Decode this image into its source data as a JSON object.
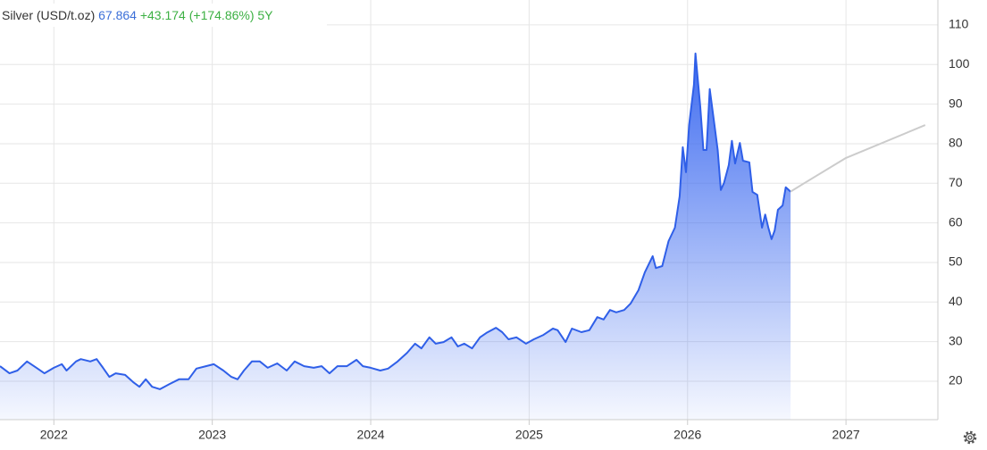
{
  "chart_data": {
    "type": "area",
    "title": "Silver (USD/t.oz)",
    "price": "67.864",
    "change": "+43.174 (+174.86%)",
    "period": "5Y",
    "xlim": [
      2021.66,
      2027.58
    ],
    "xticks": [
      2022,
      2023,
      2024,
      2025,
      2026,
      2027
    ],
    "ylim": [
      10.3,
      116.3
    ],
    "yticks": [
      20,
      30,
      40,
      50,
      60,
      70,
      80,
      90,
      100,
      110
    ],
    "grid": true,
    "series": [
      {
        "color": "#2f5fe8",
        "area": true,
        "x": [
          2021.66,
          2021.72,
          2021.77,
          2021.83,
          2021.89,
          2021.94,
          2022.0,
          2022.05,
          2022.08,
          2022.14,
          2022.17,
          2022.23,
          2022.27,
          2022.31,
          2022.35,
          2022.39,
          2022.45,
          2022.5,
          2022.54,
          2022.58,
          2022.62,
          2022.67,
          2022.73,
          2022.79,
          2022.85,
          2022.9,
          2022.96,
          2023.01,
          2023.07,
          2023.12,
          2023.16,
          2023.2,
          2023.25,
          2023.3,
          2023.35,
          2023.41,
          2023.47,
          2023.52,
          2023.58,
          2023.64,
          2023.69,
          2023.74,
          2023.79,
          2023.85,
          2023.91,
          2023.95,
          2024.0,
          2024.06,
          2024.11,
          2024.17,
          2024.23,
          2024.28,
          2024.32,
          2024.37,
          2024.41,
          2024.46,
          2024.51,
          2024.55,
          2024.59,
          2024.64,
          2024.69,
          2024.73,
          2024.79,
          2024.83,
          2024.87,
          2024.92,
          2024.98,
          2025.03,
          2025.09,
          2025.15,
          2025.18,
          2025.23,
          2025.27,
          2025.33,
          2025.38,
          2025.43,
          2025.47,
          2025.51,
          2025.55,
          2025.6,
          2025.64,
          2025.69,
          2025.73,
          2025.78,
          2025.8,
          2025.84,
          2025.88,
          2025.92,
          2025.95,
          2025.97,
          2025.99,
          2026.01,
          2026.04,
          2026.05,
          2026.08,
          2026.1,
          2026.12,
          2026.14,
          2026.17,
          2026.19,
          2026.21,
          2026.23,
          2026.26,
          2026.28,
          2026.3,
          2026.33,
          2026.35,
          2026.39,
          2026.41,
          2026.44,
          2026.47,
          2026.49,
          2026.51,
          2026.53,
          2026.55,
          2026.57,
          2026.6,
          2026.62,
          2026.65
        ],
        "values": [
          23.8,
          22,
          22.7,
          25,
          23.4,
          22,
          23.4,
          24.3,
          22.7,
          25,
          25.6,
          25,
          25.6,
          23.4,
          21.1,
          22,
          21.6,
          19.8,
          18.6,
          20.5,
          18.6,
          18,
          19.3,
          20.5,
          20.5,
          23.2,
          23.8,
          24.3,
          22.7,
          21.1,
          20.5,
          22.7,
          25,
          25,
          23.4,
          24.5,
          22.7,
          25,
          23.8,
          23.4,
          23.8,
          22,
          23.8,
          23.8,
          25.4,
          23.8,
          23.4,
          22.7,
          23.2,
          25,
          27.2,
          29.5,
          28.3,
          31.1,
          29.5,
          29.9,
          31.1,
          28.8,
          29.5,
          28.3,
          31.1,
          32.2,
          33.5,
          32.4,
          30.6,
          31.1,
          29.5,
          30.6,
          31.7,
          33.3,
          32.9,
          29.9,
          33.3,
          32.4,
          32.9,
          36.2,
          35.6,
          38,
          37.4,
          38,
          39.6,
          43,
          47.5,
          51.6,
          48.6,
          49.1,
          55.4,
          58.8,
          66.7,
          79.1,
          72.8,
          84.7,
          94.9,
          102.8,
          89.3,
          78.4,
          78.4,
          93.8,
          84.7,
          78.4,
          68.3,
          70.1,
          74.6,
          80.7,
          75,
          80.2,
          75.7,
          75.3,
          67.8,
          67.1,
          58.8,
          62.1,
          58.8,
          55.9,
          58.1,
          63.3,
          64.4,
          69,
          67.9
        ]
      },
      {
        "color": "#cccccc",
        "area": false,
        "x": [
          2026.65,
          2026.74,
          2027.0,
          2027.5
        ],
        "values": [
          67.9,
          70.1,
          76.4,
          84.7
        ]
      }
    ]
  }
}
